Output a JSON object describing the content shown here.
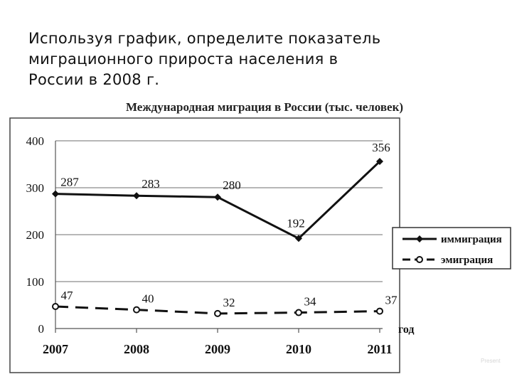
{
  "question": {
    "lines": [
      "Используя график, определите показатель",
      "миграционного прироста населения в",
      "России в 2008 г."
    ]
  },
  "chart_data": {
    "type": "line",
    "title": "Международная миграция в России (тыс. человек)",
    "xlabel": "год",
    "ylabel": "",
    "categories": [
      "2007",
      "2008",
      "2009",
      "2010",
      "2011"
    ],
    "ylim": [
      0,
      400
    ],
    "yticks": [
      "0",
      "100",
      "200",
      "300",
      "400"
    ],
    "grid": true,
    "legend_position": "right",
    "series": [
      {
        "name": "иммиграция",
        "values": [
          287,
          283,
          280,
          192,
          356
        ],
        "labels": [
          "287",
          "283",
          "280",
          "192",
          "356"
        ],
        "style": "solid",
        "marker": "filled-diamond",
        "color": "#111111"
      },
      {
        "name": "эмиграция",
        "values": [
          47,
          40,
          32,
          34,
          37
        ],
        "labels": [
          "47",
          "40",
          "32",
          "34",
          "37"
        ],
        "style": "dashed",
        "marker": "circle",
        "color": "#111111"
      }
    ]
  },
  "watermark": "Present"
}
